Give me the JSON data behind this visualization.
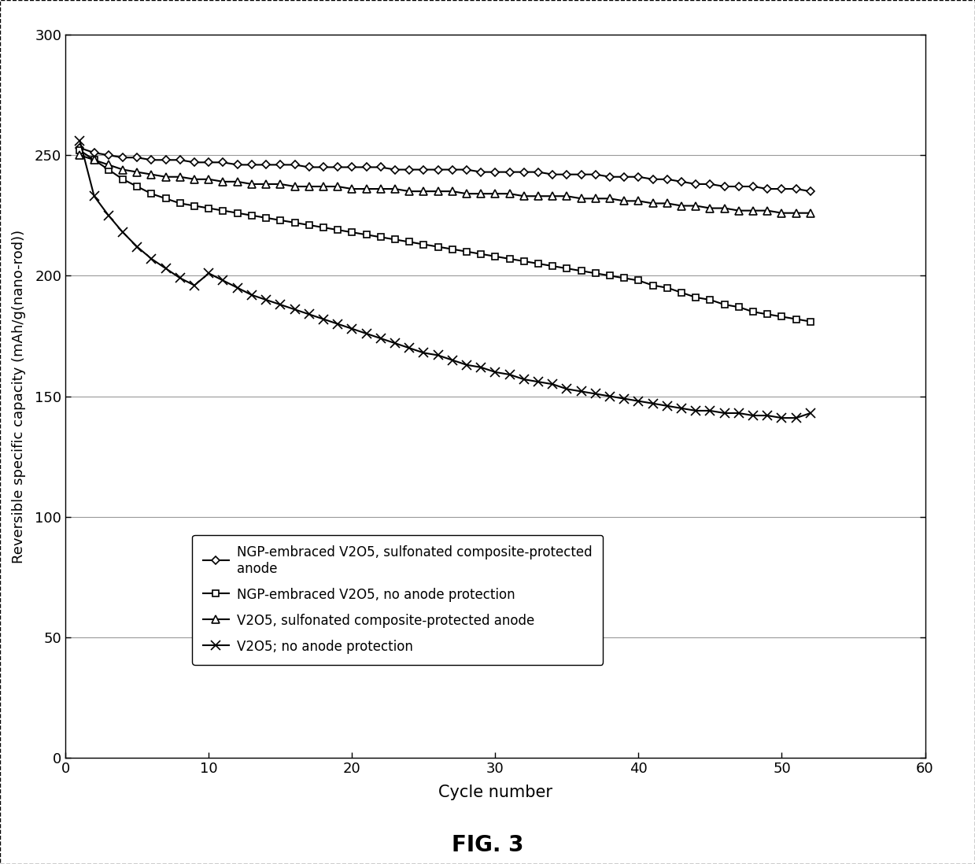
{
  "title": "FIG. 3",
  "xlabel": "Cycle number",
  "ylabel": "Reversible specific capacity (mAh/g(nano-rod))",
  "xlim": [
    0,
    60
  ],
  "ylim": [
    0,
    300
  ],
  "xticks": [
    0,
    10,
    20,
    30,
    40,
    50,
    60
  ],
  "yticks": [
    0,
    50,
    100,
    150,
    200,
    250,
    300
  ],
  "background_color": "#ffffff",
  "grid_color": "#999999",
  "series": [
    {
      "label": "NGP-embraced V2O5, sulfonated composite-protected\nanode",
      "marker": "D",
      "color": "#000000",
      "x": [
        1,
        2,
        3,
        4,
        5,
        6,
        7,
        8,
        9,
        10,
        11,
        12,
        13,
        14,
        15,
        16,
        17,
        18,
        19,
        20,
        21,
        22,
        23,
        24,
        25,
        26,
        27,
        28,
        29,
        30,
        31,
        32,
        33,
        34,
        35,
        36,
        37,
        38,
        39,
        40,
        41,
        42,
        43,
        44,
        45,
        46,
        47,
        48,
        49,
        50,
        51,
        52
      ],
      "y": [
        253,
        251,
        250,
        249,
        249,
        248,
        248,
        248,
        247,
        247,
        247,
        246,
        246,
        246,
        246,
        246,
        245,
        245,
        245,
        245,
        245,
        245,
        244,
        244,
        244,
        244,
        244,
        244,
        243,
        243,
        243,
        243,
        243,
        242,
        242,
        242,
        242,
        241,
        241,
        241,
        240,
        240,
        239,
        238,
        238,
        237,
        237,
        237,
        236,
        236,
        236,
        235
      ]
    },
    {
      "label": "NGP-embraced V2O5, no anode protection",
      "marker": "s",
      "color": "#000000",
      "x": [
        1,
        2,
        3,
        4,
        5,
        6,
        7,
        8,
        9,
        10,
        11,
        12,
        13,
        14,
        15,
        16,
        17,
        18,
        19,
        20,
        21,
        22,
        23,
        24,
        25,
        26,
        27,
        28,
        29,
        30,
        31,
        32,
        33,
        34,
        35,
        36,
        37,
        38,
        39,
        40,
        41,
        42,
        43,
        44,
        45,
        46,
        47,
        48,
        49,
        50,
        51,
        52
      ],
      "y": [
        252,
        248,
        244,
        240,
        237,
        234,
        232,
        230,
        229,
        228,
        227,
        226,
        225,
        224,
        223,
        222,
        221,
        220,
        219,
        218,
        217,
        216,
        215,
        214,
        213,
        212,
        211,
        210,
        209,
        208,
        207,
        206,
        205,
        204,
        203,
        202,
        201,
        200,
        199,
        198,
        196,
        195,
        193,
        191,
        190,
        188,
        187,
        185,
        184,
        183,
        182,
        181
      ]
    },
    {
      "label": "V2O5, sulfonated composite-protected anode",
      "marker": "^",
      "color": "#000000",
      "x": [
        1,
        2,
        3,
        4,
        5,
        6,
        7,
        8,
        9,
        10,
        11,
        12,
        13,
        14,
        15,
        16,
        17,
        18,
        19,
        20,
        21,
        22,
        23,
        24,
        25,
        26,
        27,
        28,
        29,
        30,
        31,
        32,
        33,
        34,
        35,
        36,
        37,
        38,
        39,
        40,
        41,
        42,
        43,
        44,
        45,
        46,
        47,
        48,
        49,
        50,
        51,
        52
      ],
      "y": [
        250,
        248,
        246,
        244,
        243,
        242,
        241,
        241,
        240,
        240,
        239,
        239,
        238,
        238,
        238,
        237,
        237,
        237,
        237,
        236,
        236,
        236,
        236,
        235,
        235,
        235,
        235,
        234,
        234,
        234,
        234,
        233,
        233,
        233,
        233,
        232,
        232,
        232,
        231,
        231,
        230,
        230,
        229,
        229,
        228,
        228,
        227,
        227,
        227,
        226,
        226,
        226
      ]
    },
    {
      "label": "V2O5; no anode protection",
      "marker": "x",
      "color": "#000000",
      "x": [
        1,
        2,
        3,
        4,
        5,
        6,
        7,
        8,
        9,
        10,
        11,
        12,
        13,
        14,
        15,
        16,
        17,
        18,
        19,
        20,
        21,
        22,
        23,
        24,
        25,
        26,
        27,
        28,
        29,
        30,
        31,
        32,
        33,
        34,
        35,
        36,
        37,
        38,
        39,
        40,
        41,
        42,
        43,
        44,
        45,
        46,
        47,
        48,
        49,
        50,
        51,
        52
      ],
      "y": [
        256,
        233,
        225,
        218,
        212,
        207,
        203,
        199,
        196,
        201,
        198,
        195,
        192,
        190,
        188,
        186,
        184,
        182,
        180,
        178,
        176,
        174,
        172,
        170,
        168,
        167,
        165,
        163,
        162,
        160,
        159,
        157,
        156,
        155,
        153,
        152,
        151,
        150,
        149,
        148,
        147,
        146,
        145,
        144,
        144,
        143,
        143,
        142,
        142,
        141,
        141,
        143
      ]
    }
  ],
  "legend_labels": [
    "NGP-embraced V2O5, sulfonated composite-protected\nanode",
    "NGP-embraced V2O5, no anode protection",
    "V2O5, sulfonated composite-protected anode",
    "V2O5; no anode protection"
  ],
  "legend_markers": [
    "D",
    "s",
    "^",
    "x"
  ]
}
